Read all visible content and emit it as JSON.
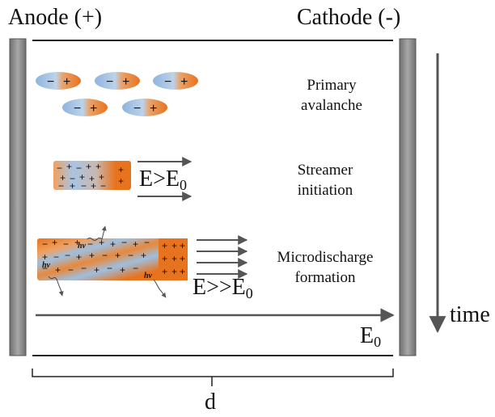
{
  "electrodes": {
    "anode_label": "Anode (+)",
    "cathode_label": "Cathode (-)"
  },
  "stages": [
    {
      "line1": "Primary",
      "line2": "avalanche"
    },
    {
      "line1": "Streamer",
      "line2": "initiation"
    },
    {
      "line1": "Microdischarge",
      "line2": "formation"
    }
  ],
  "fields": {
    "streamer_main": "E>E",
    "streamer_sub": "0",
    "micro_main": "E>>E",
    "micro_sub": "0",
    "gap_main": "E",
    "gap_sub": "0"
  },
  "photon_label": "hv",
  "time_label": "time",
  "gap_label": "d",
  "colors": {
    "orange": "#e8731e",
    "blue": "#9dbfe0",
    "electrode": "#8a8a8a",
    "arrow": "#555555"
  }
}
